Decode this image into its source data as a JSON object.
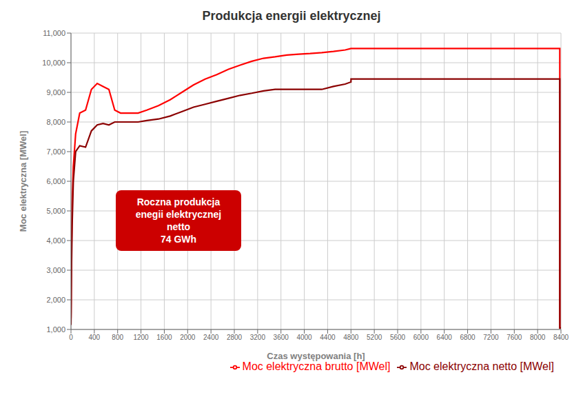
{
  "chart_data": {
    "type": "line",
    "title": "Produkcja energii elektrycznej",
    "x_label": "Czas występowania  [h]",
    "y_label": "Moc elektryczna  [MWel]",
    "x": [
      0,
      3,
      6,
      10,
      20,
      40,
      80,
      150,
      250,
      350,
      450,
      550,
      650,
      750,
      850,
      950,
      1050,
      1150,
      1300,
      1500,
      1700,
      1900,
      2100,
      2300,
      2500,
      2700,
      2900,
      3100,
      3300,
      3500,
      3700,
      3900,
      4100,
      4300,
      4500,
      4700,
      4800,
      4801,
      5200,
      5600,
      6000,
      6400,
      6800,
      7200,
      7600,
      8000,
      8380,
      8381,
      8400
    ],
    "series": [
      {
        "name": "Moc elektryczna brutto [MWel]",
        "color": "#FF0000",
        "values": [
          1380,
          2000,
          3000,
          3800,
          5200,
          6500,
          7600,
          8300,
          8400,
          9100,
          9300,
          9200,
          9100,
          8400,
          8300,
          8300,
          8300,
          8300,
          8400,
          8550,
          8750,
          9000,
          9250,
          9450,
          9600,
          9780,
          9920,
          10050,
          10150,
          10200,
          10260,
          10290,
          10310,
          10340,
          10380,
          10430,
          10480,
          10480,
          10480,
          10480,
          10480,
          10480,
          10480,
          10480,
          10480,
          10480,
          10480,
          1050,
          1050
        ]
      },
      {
        "name": "Moc elektryczna netto [MWel]",
        "color": "#8B0000",
        "values": [
          1150,
          1600,
          2400,
          3200,
          4500,
          6000,
          7000,
          7200,
          7150,
          7700,
          7900,
          7950,
          7900,
          8000,
          8000,
          8000,
          8000,
          8000,
          8050,
          8100,
          8200,
          8350,
          8500,
          8600,
          8700,
          8800,
          8900,
          8970,
          9050,
          9100,
          9100,
          9100,
          9100,
          9100,
          9200,
          9280,
          9350,
          9450,
          9450,
          9450,
          9450,
          9450,
          9450,
          9450,
          9450,
          9450,
          9450,
          1050,
          1050
        ]
      }
    ],
    "xlim": [
      0,
      8400
    ],
    "ylim": [
      1000,
      11000
    ],
    "xticks": [
      0,
      400,
      800,
      1200,
      1600,
      2000,
      2400,
      2800,
      3200,
      3600,
      4000,
      4400,
      4800,
      5200,
      5600,
      6000,
      6400,
      6800,
      7200,
      7600,
      8000,
      8400
    ],
    "yticks": [
      {
        "value": 1000,
        "label": "1,000"
      },
      {
        "value": 2000,
        "label": "2,000"
      },
      {
        "value": 3000,
        "label": "3,000"
      },
      {
        "value": 4000,
        "label": "4,000"
      },
      {
        "value": 5000,
        "label": "5,000"
      },
      {
        "value": 6000,
        "label": "6,000"
      },
      {
        "value": 7000,
        "label": "7,000"
      },
      {
        "value": 8000,
        "label": "8,000"
      },
      {
        "value": 9000,
        "label": "9,000"
      },
      {
        "value": 10000,
        "label": "10,000"
      },
      {
        "value": 11000,
        "label": "11,000"
      }
    ],
    "grid": true,
    "legend": "lower right",
    "annotation": "Roczna produkcja\nenegii elektrycznej\nnetto\n74 GWh"
  }
}
